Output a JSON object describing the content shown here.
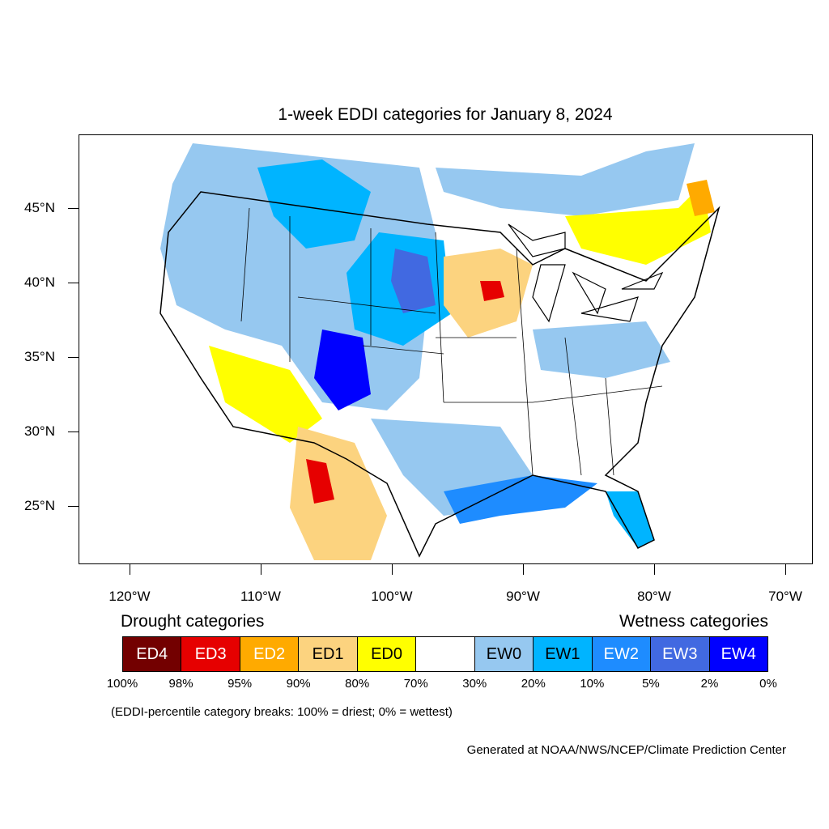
{
  "title": "1-week EDDI categories for January 8, 2024",
  "lat_ticks": [
    {
      "label": "45°N",
      "lat": 45
    },
    {
      "label": "40°N",
      "lat": 40
    },
    {
      "label": "35°N",
      "lat": 35
    },
    {
      "label": "30°N",
      "lat": 30
    },
    {
      "label": "25°N",
      "lat": 25
    }
  ],
  "lon_ticks": [
    {
      "label": "120°W",
      "lon": -120
    },
    {
      "label": "110°W",
      "lon": -110
    },
    {
      "label": "100°W",
      "lon": -100
    },
    {
      "label": "90°W",
      "lon": -90
    },
    {
      "label": "80°W",
      "lon": -80
    },
    {
      "label": "70°W",
      "lon": -70
    }
  ],
  "legend": {
    "drought_heading": "Drought categories",
    "wetness_heading": "Wetness categories",
    "categories": [
      {
        "label": "ED4",
        "color": "#730000",
        "text_color": "#ffffff"
      },
      {
        "label": "ED3",
        "color": "#e60000",
        "text_color": "#ffffff"
      },
      {
        "label": "ED2",
        "color": "#ffaa00",
        "text_color": "#ffffff"
      },
      {
        "label": "ED1",
        "color": "#fcd37f",
        "text_color": "#000000"
      },
      {
        "label": "ED0",
        "color": "#ffff00",
        "text_color": "#000000"
      },
      {
        "label": "",
        "color": "#ffffff",
        "text_color": "#000000"
      },
      {
        "label": "EW0",
        "color": "#96c8f0",
        "text_color": "#000000"
      },
      {
        "label": "EW1",
        "color": "#00b4ff",
        "text_color": "#000000"
      },
      {
        "label": "EW2",
        "color": "#1e8cff",
        "text_color": "#ffffff"
      },
      {
        "label": "EW3",
        "color": "#4169e1",
        "text_color": "#ffffff"
      },
      {
        "label": "EW4",
        "color": "#0000ff",
        "text_color": "#ffffff"
      }
    ],
    "breaks": [
      "100%",
      "98%",
      "95%",
      "90%",
      "80%",
      "70%",
      "30%",
      "20%",
      "10%",
      "5%",
      "2%",
      "0%"
    ]
  },
  "note": "(EDDI-percentile category breaks: 100% = driest; 0% = wettest)",
  "credit": "Generated at NOAA/NWS/NCEP/Climate Prediction Center"
}
